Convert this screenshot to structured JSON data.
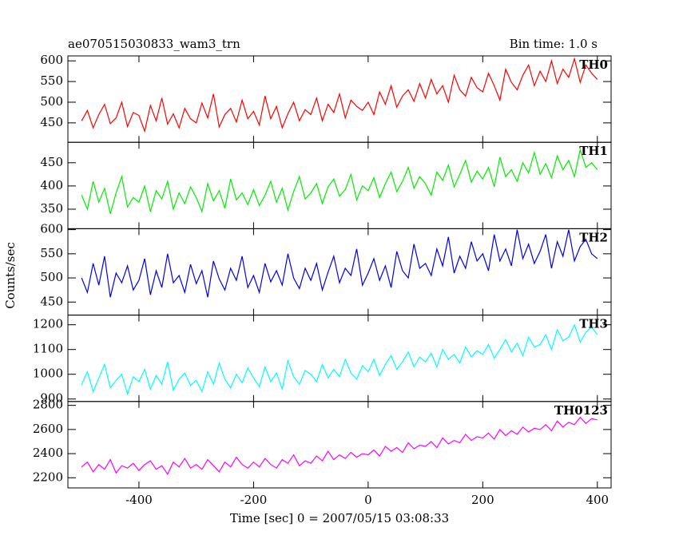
{
  "chart_data": {
    "type": "line",
    "title": "ae070515030833_wam3_trn",
    "subtitle": "Bin time: 1.0 s",
    "xlabel": "Time [sec] 0 = 2007/05/15 03:08:33",
    "ylabel": "Counts/sec",
    "xlim": [
      -524,
      424
    ],
    "xticks": [
      -400,
      -200,
      0,
      200,
      400
    ],
    "x": [
      -500,
      -490,
      -480,
      -470,
      -460,
      -450,
      -440,
      -430,
      -420,
      -410,
      -400,
      -390,
      -380,
      -370,
      -360,
      -350,
      -340,
      -330,
      -320,
      -310,
      -300,
      -290,
      -280,
      -270,
      -260,
      -250,
      -240,
      -230,
      -220,
      -210,
      -200,
      -190,
      -180,
      -170,
      -160,
      -150,
      -140,
      -130,
      -120,
      -110,
      -100,
      -90,
      -80,
      -70,
      -60,
      -50,
      -40,
      -30,
      -20,
      -10,
      0,
      10,
      20,
      30,
      40,
      50,
      60,
      70,
      80,
      90,
      100,
      110,
      120,
      130,
      140,
      150,
      160,
      170,
      180,
      190,
      200,
      210,
      220,
      230,
      240,
      250,
      260,
      270,
      280,
      290,
      300,
      310,
      320,
      330,
      340,
      350,
      360,
      370,
      380,
      390,
      400
    ],
    "series": [
      {
        "name": "TH0",
        "color": "#ff0000",
        "ylim": [
          403,
          612
        ],
        "yticks": [
          450,
          500,
          550,
          600
        ],
        "values": [
          455,
          480,
          438,
          470,
          495,
          448,
          462,
          500,
          441,
          475,
          468,
          430,
          492,
          455,
          510,
          447,
          472,
          438,
          485,
          460,
          450,
          498,
          462,
          520,
          440,
          470,
          485,
          452,
          505,
          460,
          478,
          445,
          515,
          460,
          490,
          438,
          472,
          500,
          455,
          482,
          470,
          510,
          455,
          495,
          475,
          520,
          462,
          505,
          490,
          480,
          500,
          470,
          525,
          495,
          540,
          488,
          515,
          530,
          502,
          545,
          510,
          555,
          520,
          540,
          500,
          565,
          530,
          515,
          560,
          535,
          525,
          570,
          540,
          505,
          580,
          548,
          530,
          565,
          590,
          540,
          575,
          550,
          600,
          545,
          580,
          560,
          605,
          548,
          590,
          570,
          555
        ]
      },
      {
        "name": "TH1",
        "color": "#00ee00",
        "ylim": [
          308,
          494
        ],
        "yticks": [
          350,
          400,
          450
        ],
        "values": [
          380,
          350,
          410,
          365,
          395,
          340,
          385,
          420,
          355,
          375,
          365,
          400,
          345,
          390,
          372,
          410,
          350,
          385,
          362,
          398,
          375,
          345,
          405,
          368,
          390,
          352,
          415,
          370,
          385,
          360,
          392,
          358,
          380,
          410,
          365,
          395,
          348,
          388,
          420,
          372,
          385,
          405,
          362,
          398,
          415,
          378,
          392,
          425,
          370,
          400,
          390,
          418,
          375,
          405,
          430,
          388,
          410,
          440,
          395,
          420,
          405,
          380,
          430,
          412,
          445,
          398,
          425,
          455,
          408,
          432,
          415,
          440,
          398,
          462,
          420,
          435,
          410,
          450,
          428,
          472,
          425,
          448,
          418,
          465,
          435,
          455,
          420,
          478,
          440,
          450,
          435
        ]
      },
      {
        "name": "TH2",
        "color": "#0000ee",
        "ylim": [
          423,
          602
        ],
        "yticks": [
          450,
          500,
          550,
          600
        ],
        "values": [
          500,
          470,
          530,
          485,
          545,
          460,
          510,
          490,
          525,
          475,
          495,
          540,
          465,
          515,
          480,
          550,
          490,
          505,
          470,
          528,
          488,
          515,
          460,
          535,
          498,
          475,
          520,
          495,
          545,
          480,
          505,
          470,
          530,
          492,
          515,
          485,
          550,
          500,
          478,
          520,
          495,
          530,
          475,
          512,
          545,
          490,
          520,
          505,
          560,
          485,
          510,
          540,
          495,
          525,
          480,
          555,
          515,
          500,
          570,
          520,
          530,
          505,
          560,
          525,
          585,
          510,
          545,
          520,
          575,
          535,
          550,
          515,
          590,
          535,
          560,
          525,
          600,
          540,
          570,
          530,
          555,
          590,
          520,
          575,
          545,
          600,
          535,
          565,
          580,
          550,
          540
        ]
      },
      {
        "name": "TH3",
        "color": "#00ffff",
        "ylim": [
          890,
          1239
        ],
        "yticks": [
          900,
          1000,
          1100,
          1200
        ],
        "values": [
          960,
          1010,
          930,
          985,
          1040,
          945,
          975,
          1000,
          920,
          990,
          970,
          1020,
          940,
          995,
          960,
          1050,
          935,
          980,
          1005,
          955,
          975,
          930,
          1010,
          960,
          1045,
          980,
          945,
          1000,
          965,
          1025,
          985,
          950,
          1030,
          970,
          1005,
          940,
          1055,
          990,
          960,
          1015,
          1000,
          970,
          1040,
          985,
          1020,
          990,
          1060,
          1005,
          980,
          1035,
          1010,
          1060,
          995,
          1040,
          1075,
          1020,
          1050,
          1090,
          1030,
          1070,
          1050,
          1085,
          1030,
          1100,
          1060,
          1080,
          1045,
          1110,
          1070,
          1095,
          1080,
          1120,
          1065,
          1100,
          1140,
          1090,
          1125,
          1075,
          1150,
          1110,
          1120,
          1160,
          1100,
          1180,
          1135,
          1150,
          1200,
          1130,
          1170,
          1190,
          1160
        ]
      },
      {
        "name": "TH0123",
        "color": "#ff00ff",
        "ylim": [
          2116,
          2832
        ],
        "yticks": [
          2200,
          2400,
          2600,
          2800
        ],
        "values": [
          2290,
          2330,
          2250,
          2310,
          2270,
          2350,
          2240,
          2300,
          2280,
          2320,
          2260,
          2310,
          2340,
          2270,
          2300,
          2230,
          2330,
          2290,
          2360,
          2280,
          2310,
          2270,
          2350,
          2300,
          2250,
          2330,
          2290,
          2370,
          2310,
          2280,
          2330,
          2290,
          2360,
          2310,
          2280,
          2350,
          2320,
          2390,
          2300,
          2340,
          2320,
          2380,
          2340,
          2420,
          2350,
          2390,
          2360,
          2410,
          2370,
          2400,
          2390,
          2430,
          2380,
          2460,
          2420,
          2450,
          2410,
          2490,
          2440,
          2470,
          2460,
          2500,
          2450,
          2530,
          2480,
          2510,
          2490,
          2560,
          2510,
          2540,
          2530,
          2570,
          2520,
          2600,
          2550,
          2590,
          2560,
          2620,
          2580,
          2610,
          2600,
          2640,
          2590,
          2670,
          2620,
          2660,
          2640,
          2700,
          2650,
          2690,
          2680
        ]
      }
    ]
  }
}
